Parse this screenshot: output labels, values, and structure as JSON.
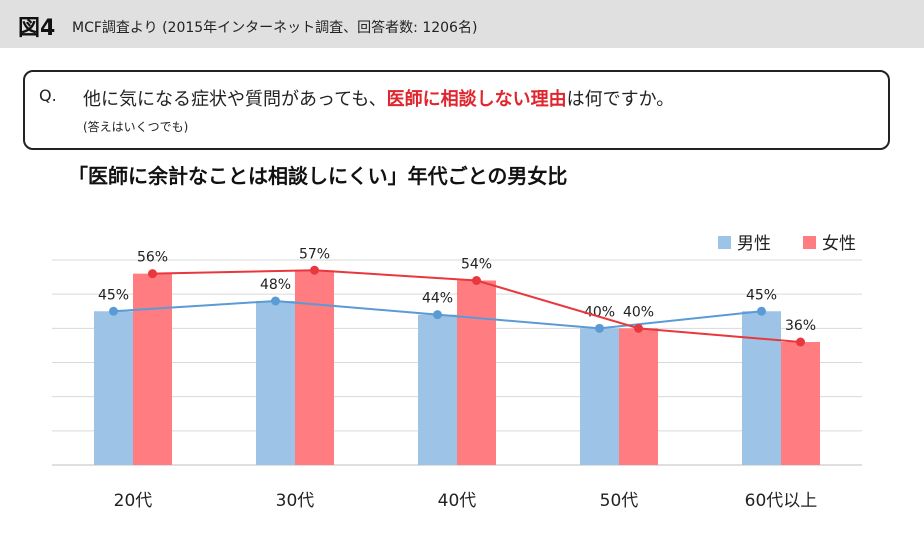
{
  "header": {
    "figure_label": "図4",
    "figure_subtitle": "MCF調査より (2015年インターネット調査、回答者数: 1206名)"
  },
  "question": {
    "marker": "Q.",
    "text_before": "他に気になる症状や質問があっても、",
    "text_emphasis": "医師に相談しない理由",
    "text_after": "は何ですか。",
    "note": "(答えはいくつでも)",
    "emphasis_color": "#e0252e"
  },
  "chart_data": {
    "type": "bar",
    "title": "「医師に余計なことは相談しにくい」年代ごとの男女比",
    "categories": [
      "20代",
      "30代",
      "40代",
      "50代",
      "60代以上"
    ],
    "series": [
      {
        "name": "男性",
        "values": [
          45,
          48,
          44,
          40,
          45
        ],
        "bar_color": "#9dc3e6",
        "line_color": "#5b9bd5"
      },
      {
        "name": "女性",
        "values": [
          56,
          57,
          54,
          40,
          36
        ],
        "bar_color": "#ff7c80",
        "line_color": "#e8383d"
      }
    ],
    "value_suffix": "%",
    "ylim": [
      0,
      60
    ],
    "grid": true,
    "legend": "top-right",
    "overlay_lines": true
  }
}
